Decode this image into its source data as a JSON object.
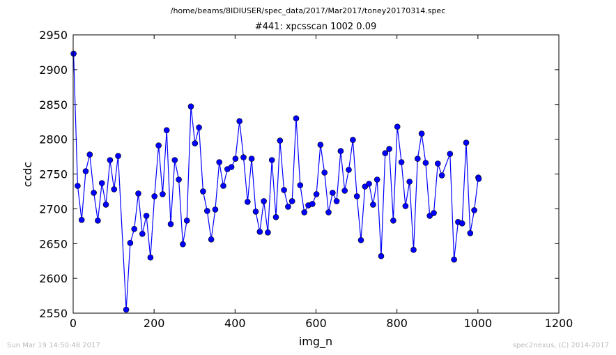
{
  "header": {
    "file_path": "/home/beams/8IDIUSER/spec_data/2017/Mar2017/toney20170314.spec",
    "scan_title": "#441: xpcsscan 1002 0.09"
  },
  "footer": {
    "timestamp": "Sun Mar 19 14:50:48 2017",
    "credit": "spec2nexus, (C) 2014-2017"
  },
  "colors": {
    "series": "#0000ff",
    "marker_edge": "#000000"
  },
  "chart_data": {
    "type": "line",
    "title": "#441: xpcsscan 1002 0.09",
    "xlabel": "img_n",
    "ylabel": "ccdc",
    "xlim": [
      0,
      1200
    ],
    "ylim": [
      2550,
      2950
    ],
    "xticks": [
      0,
      200,
      400,
      600,
      800,
      1000,
      1200
    ],
    "yticks": [
      2550,
      2600,
      2650,
      2700,
      2750,
      2800,
      2850,
      2900,
      2950
    ],
    "grid": false,
    "x": [
      1,
      11,
      21,
      31,
      41,
      51,
      61,
      71,
      81,
      91,
      101,
      111,
      131,
      141,
      151,
      161,
      171,
      181,
      191,
      201,
      211,
      221,
      231,
      241,
      251,
      261,
      271,
      281,
      291,
      301,
      311,
      321,
      331,
      341,
      351,
      361,
      371,
      381,
      391,
      401,
      411,
      421,
      431,
      441,
      451,
      461,
      471,
      481,
      491,
      501,
      511,
      521,
      531,
      541,
      551,
      561,
      571,
      581,
      591,
      601,
      611,
      621,
      631,
      641,
      651,
      661,
      671,
      681,
      691,
      701,
      711,
      721,
      731,
      741,
      751,
      761,
      771,
      781,
      791,
      801,
      811,
      821,
      831,
      841,
      851,
      861,
      871,
      881,
      891,
      901,
      911,
      931,
      941,
      951,
      961,
      971,
      981,
      991,
      1001,
      1002
    ],
    "y": [
      2923,
      2733,
      2684,
      2754,
      2778,
      2723,
      2683,
      2737,
      2706,
      2770,
      2728,
      2776,
      2555,
      2651,
      2671,
      2722,
      2664,
      2690,
      2630,
      2718,
      2791,
      2721,
      2813,
      2678,
      2770,
      2742,
      2649,
      2683,
      2847,
      2794,
      2817,
      2725,
      2697,
      2656,
      2699,
      2767,
      2733,
      2757,
      2760,
      2772,
      2826,
      2774,
      2710,
      2772,
      2696,
      2667,
      2711,
      2666,
      2770,
      2688,
      2798,
      2727,
      2703,
      2711,
      2830,
      2734,
      2695,
      2705,
      2707,
      2721,
      2792,
      2752,
      2695,
      2723,
      2711,
      2783,
      2726,
      2756,
      2799,
      2718,
      2655,
      2732,
      2736,
      2706,
      2742,
      2632,
      2780,
      2786,
      2683,
      2818,
      2767,
      2704,
      2739,
      2641,
      2772,
      2808,
      2766,
      2690,
      2694,
      2765,
      2748,
      2779,
      2627,
      2681,
      2679,
      2795,
      2665,
      2698,
      2745,
      2743
    ]
  }
}
